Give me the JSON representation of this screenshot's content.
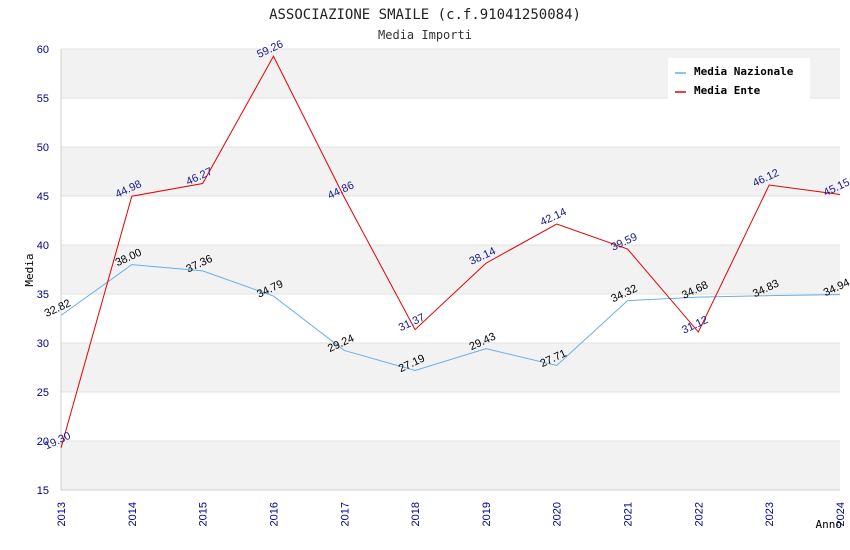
{
  "chart_data": {
    "type": "line",
    "title": "ASSOCIAZIONE SMAILE (c.f.91041250084)",
    "subtitle": "Media Importi",
    "xlabel": "Anno",
    "ylabel": "Media",
    "ylim": [
      15,
      60
    ],
    "yticks": [
      "15",
      "20",
      "25",
      "30",
      "35",
      "40",
      "45",
      "50",
      "55",
      "60"
    ],
    "categories": [
      "2013",
      "2014",
      "2015",
      "2016",
      "2017",
      "2018",
      "2019",
      "2020",
      "2021",
      "2022",
      "2023",
      "2024"
    ],
    "legend_position": "top-right",
    "series": [
      {
        "name": "Media Nazionale",
        "color": "#6aaee6",
        "values": [
          32.82,
          38.0,
          37.36,
          34.79,
          29.24,
          27.19,
          29.43,
          27.71,
          34.32,
          34.68,
          34.83,
          34.94
        ],
        "labels": [
          "32.82",
          "38.00",
          "37.36",
          "34.79",
          "29.24",
          "27.19",
          "29.43",
          "27.71",
          "34.32",
          "34.68",
          "34.83",
          "34.94"
        ]
      },
      {
        "name": "Media Ente",
        "color": "#e60000",
        "values": [
          19.3,
          44.98,
          46.27,
          59.26,
          44.86,
          31.37,
          38.14,
          42.14,
          39.59,
          31.12,
          46.12,
          45.15
        ],
        "labels": [
          "19.30",
          "44.98",
          "46.27",
          "59.26",
          "44.86",
          "31.37",
          "38.14",
          "42.14",
          "39.59",
          "31.12",
          "46.12",
          "45.15"
        ]
      }
    ]
  }
}
